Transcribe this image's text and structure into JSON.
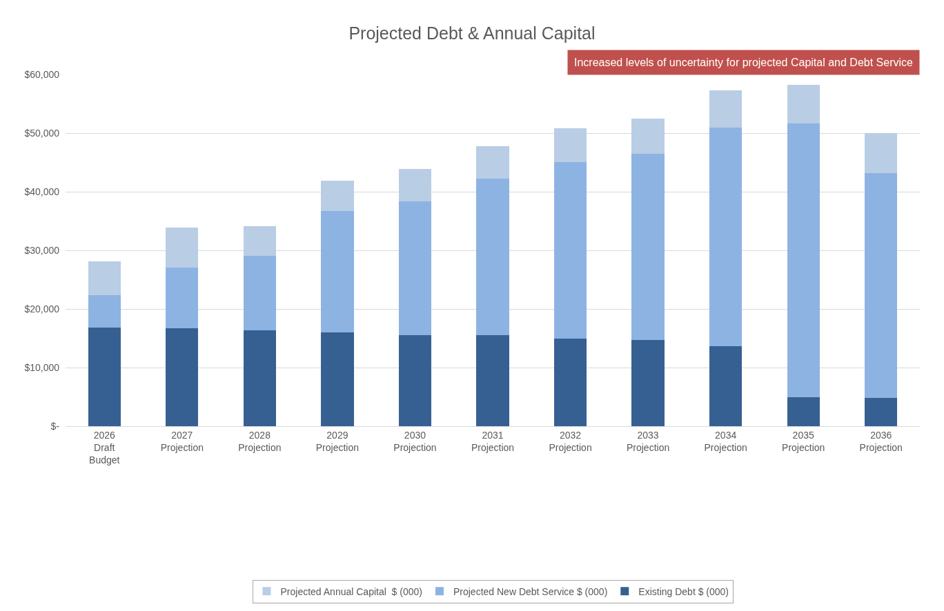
{
  "chart_data": {
    "type": "bar",
    "title": "Projected Debt & Annual Capital",
    "stacked": true,
    "grid": "y",
    "legend": "bottom",
    "categories": [
      "2026 Draft Budget",
      "2027 Projection",
      "2028 Projection",
      "2029 Projection",
      "2030 Projection",
      "2031 Projection",
      "2032 Projection",
      "2033 Projection",
      "2034 Projection",
      "2035 Projection",
      "2036 Projection"
    ],
    "series": [
      {
        "name": "Existing Debt $ (000)",
        "color": "#366092",
        "values": [
          16800,
          16700,
          16400,
          16000,
          15500,
          15500,
          14900,
          14700,
          13600,
          4900,
          4800
        ]
      },
      {
        "name": "Projected New Debt Service $ (000)",
        "color": "#8db3e2",
        "values": [
          5600,
          10400,
          12700,
          20700,
          22900,
          26700,
          30200,
          31800,
          37300,
          46700,
          38400
        ]
      },
      {
        "name": "Projected Annual Capital  $ (000)",
        "color": "#b9cde5",
        "values": [
          5700,
          6800,
          5000,
          5200,
          5500,
          5600,
          5700,
          6000,
          6400,
          6600,
          6800
        ]
      }
    ],
    "ylim": [
      0,
      60000
    ],
    "yticks": [
      {
        "value": 0,
        "label": "$-"
      },
      {
        "value": 10000,
        "label": "$10,000"
      },
      {
        "value": 20000,
        "label": "$20,000"
      },
      {
        "value": 30000,
        "label": "$30,000"
      },
      {
        "value": 40000,
        "label": "$40,000"
      },
      {
        "value": 50000,
        "label": "$50,000"
      },
      {
        "value": 60000,
        "label": "$60,000"
      }
    ],
    "annotations": [
      "Increased levels of uncertainty for projected Capital and Debt Service"
    ]
  }
}
